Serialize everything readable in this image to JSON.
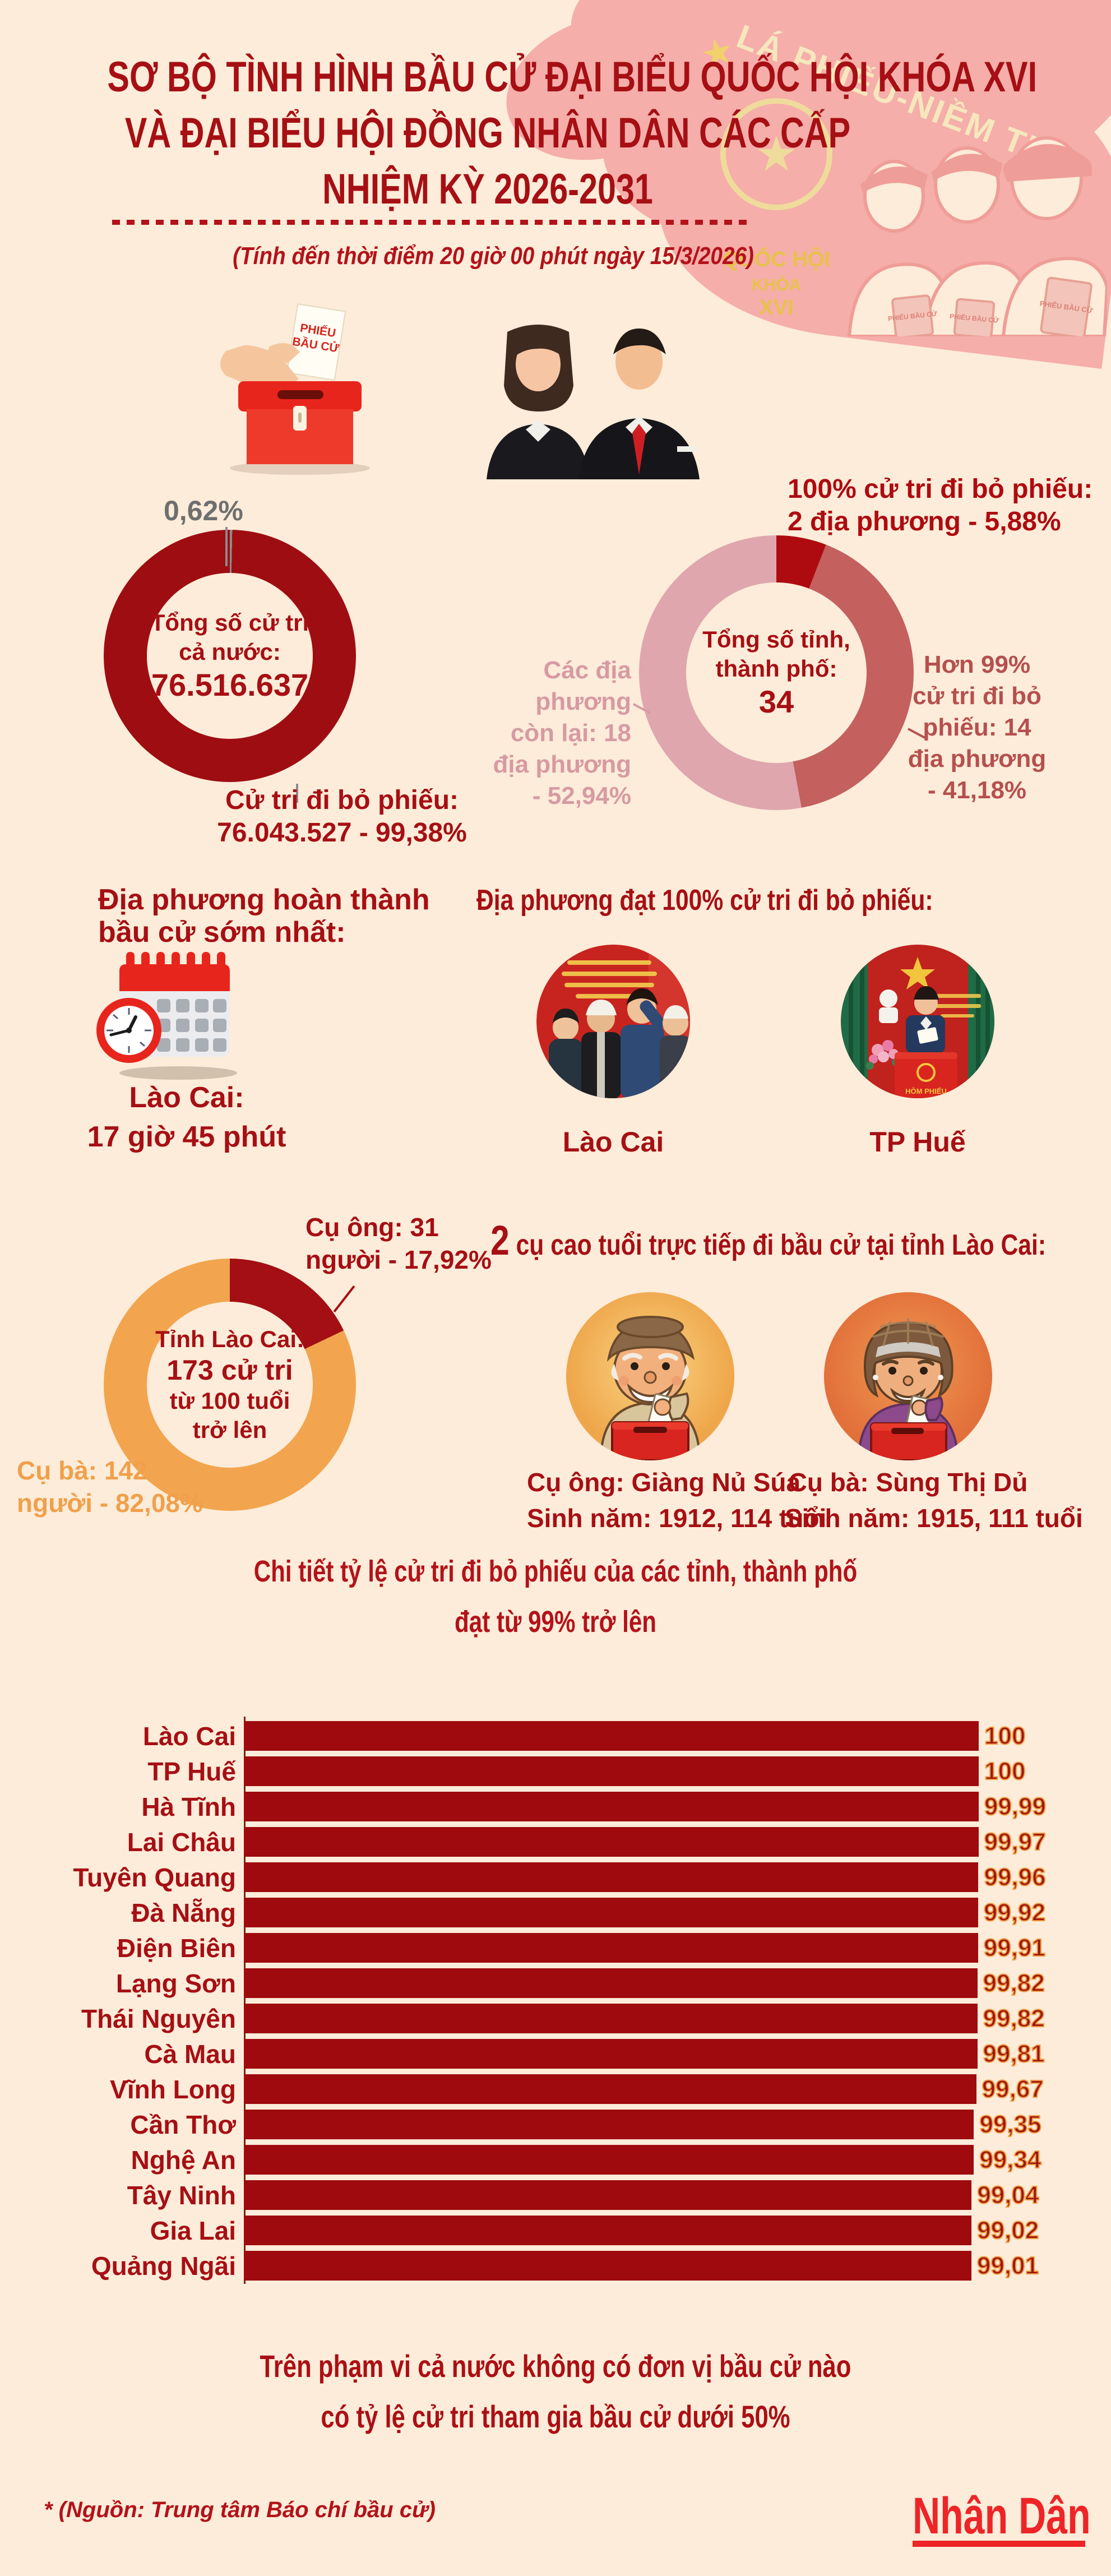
{
  "header": {
    "title_lines": [
      "SƠ BỘ TÌNH HÌNH BẦU CỬ ĐẠI BIỂU QUỐC HỘI KHÓA XVI",
      "VÀ ĐẠI BIỂU HỘI ĐỒNG NHÂN DÂN CÁC CẤP",
      "NHIỆM KỲ 2026-2031"
    ],
    "subtitle": "(Tính đến thời điểm 20 giờ 00 phút ngày 15/3/2026)",
    "poster": {
      "slogan": "LÁ PHIẾU-NIỀM TIN",
      "star_glyph": "★",
      "org_line1": "QUỐC HỘI",
      "org_line2": "KHÓA",
      "org_line3": "XVI",
      "ballot_card": "PHIẾU BẦU CỬ"
    }
  },
  "icons": {
    "ballot_paper_line1": "PHIẾU",
    "ballot_paper_line2": "BẦU CỬ",
    "ballot_box_name": "ballot-box-illustration",
    "voters_name": "two-voters-illustration",
    "calendar_clock_name": "calendar-clock-icon"
  },
  "donut_voters": {
    "nonvoter_label": "0,62%",
    "center_line1": "Tổng số cử tri",
    "center_line2": "cả nước:",
    "center_value": "76.516.637",
    "voted_line1": "Cử tri đi bỏ phiếu:",
    "voted_line2": "76.043.527 - 99,38%"
  },
  "donut_provinces": {
    "center_line1": "Tổng số tỉnh,",
    "center_line2": "thành phố:",
    "center_value": "34",
    "full_label_line1": "100% cử tri đi bỏ phiếu:",
    "full_label_line2": "2 địa phương - 5,88%",
    "over99_lines": [
      "Hơn 99%",
      "cử tri đi bỏ",
      "phiếu: 14",
      "địa phương",
      "- 41,18%"
    ],
    "rest_lines": [
      "Các địa",
      "phương",
      "còn lại: 18",
      "địa phương",
      "- 52,94%"
    ]
  },
  "earliest": {
    "heading_line1": "Địa phương hoàn thành",
    "heading_line2": "bầu cử sớm nhất:",
    "place": "Lào Cai:",
    "time": "17 giờ 45 phút"
  },
  "full_turnout": {
    "heading": "Địa phương đạt 100% cử tri đi bỏ phiếu:",
    "photo1_label": "Lào Cai",
    "photo2_label": "TP Huế",
    "photo2_box_text": "HÒM PHIẾU"
  },
  "centenarians": {
    "men_line1": "Cụ ông: 31",
    "men_line2": "người - 17,92%",
    "women_line1": "Cụ bà: 142",
    "women_line2": "người - 82,08%",
    "center_line1": "Tỉnh Lào Cai:",
    "center_line2": "173 cử tri",
    "center_line3": "từ 100 tuổi",
    "center_line4": "trở lên",
    "heading_num": "2",
    "heading_rest": " cụ cao tuổi trực tiếp đi bầu cử tại tỉnh Lào Cai:",
    "man_caption_line1": "Cụ ông: Giàng Nủ Súa",
    "man_caption_line2": "Sinh năm: 1912, 114 tuổi",
    "woman_caption_line1": "Cụ bà: Sùng Thị Dủ",
    "woman_caption_line2": "Sinh năm: 1915, 111 tuổi"
  },
  "chart": {
    "title_line1": "Chi tiết tỷ lệ cử tri đi bỏ phiếu của các tỉnh, thành phố",
    "title_line2": "đạt từ 99% trở lên"
  },
  "footer": {
    "note_line1": "Trên phạm vi cả nước không có đơn vị bầu cử nào",
    "note_line2": "có tỷ lệ cử tri tham gia bầu cử dưới 50%",
    "source": "* (Nguồn: Trung tâm Báo chí bầu cử)",
    "logo": "Nhân Dân"
  },
  "colors": {
    "background": "#fcecd9",
    "title_red": "#a60f14",
    "bar_red": "#9e0a0e",
    "bright_red": "#e8251d",
    "medium_red": "#c4605e",
    "light_pink": "#dfa6ad",
    "gray_slice": "#8c8c8c",
    "orange": "#f2a54e",
    "value_outline_orange": "#ef9a3e",
    "poster_pink": "#f5aeaa",
    "poster_cream": "#f6e7bd",
    "logo_red": "#ee2427"
  },
  "chart_data": [
    {
      "type": "pie",
      "title": "Tổng số cử tri cả nước: 76.516.637",
      "slices": [
        {
          "label": "Cử tri đi bỏ phiếu",
          "value": 99.38,
          "display": "76.043.527 - 99,38%",
          "color": "#9e0d12"
        },
        {
          "label": "Cử tri chưa đi bỏ phiếu",
          "value": 0.62,
          "display": "0,62%",
          "color": "#8c8c8c"
        }
      ]
    },
    {
      "type": "pie",
      "title": "Tổng số tỉnh, thành phố: 34",
      "slices": [
        {
          "label": "100% cử tri đi bỏ phiếu",
          "value": 5.88,
          "display": "2 địa phương - 5,88%",
          "color": "#ae0b10"
        },
        {
          "label": "Hơn 99% cử tri đi bỏ phiếu",
          "value": 41.18,
          "display": "14 địa phương - 41,18%",
          "color": "#c4605e"
        },
        {
          "label": "Các địa phương còn lại",
          "value": 52.94,
          "display": "18 địa phương - 52,94%",
          "color": "#dfa6ad"
        }
      ]
    },
    {
      "type": "pie",
      "title": "Tỉnh Lào Cai: 173 cử tri từ 100 tuổi trở lên",
      "slices": [
        {
          "label": "Cụ ông",
          "value": 17.92,
          "display": "31 người - 17,92%",
          "color": "#a30f14"
        },
        {
          "label": "Cụ bà",
          "value": 82.08,
          "display": "142 người - 82,08%",
          "color": "#f2a54e"
        }
      ]
    },
    {
      "type": "bar",
      "title": "Chi tiết tỷ lệ cử tri đi bỏ phiếu của các tỉnh, thành phố đạt từ 99% trở lên",
      "categories": [
        "Lào Cai",
        "TP Huế",
        "Hà Tĩnh",
        "Lai Châu",
        "Tuyên Quang",
        "Đà Nẵng",
        "Điện Biên",
        "Lạng Sơn",
        "Thái Nguyên",
        "Cà Mau",
        "Vĩnh Long",
        "Cần Thơ",
        "Nghệ An",
        "Tây Ninh",
        "Gia Lai",
        "Quảng Ngãi"
      ],
      "values": [
        100,
        100,
        99.99,
        99.97,
        99.96,
        99.92,
        99.91,
        99.82,
        99.82,
        99.81,
        99.67,
        99.35,
        99.34,
        99.04,
        99.02,
        99.01
      ],
      "value_labels": [
        "100",
        "100",
        "99,99",
        "99,97",
        "99,96",
        "99,92",
        "99,91",
        "99,82",
        "99,82",
        "99,81",
        "99,67",
        "99,35",
        "99,34",
        "99,04",
        "99,02",
        "99,01"
      ],
      "xlabel": "",
      "ylabel": "",
      "xlim": [
        0,
        100
      ],
      "bar_color": "#9e0a0e"
    }
  ]
}
